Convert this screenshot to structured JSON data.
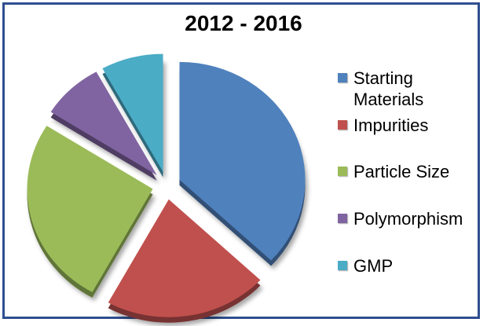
{
  "chart_data": {
    "type": "pie",
    "title": "2012 - 2016",
    "categories": [
      "Starting Materials",
      "Impurities",
      "Particle Size",
      "Polymorphism",
      "GMP"
    ],
    "values": [
      37,
      21,
      26,
      8,
      8
    ],
    "colors": [
      "#4f81bd",
      "#c0504d",
      "#9bbb59",
      "#8064a2",
      "#4bacc6"
    ],
    "exploded": true,
    "legend_position": "right"
  }
}
